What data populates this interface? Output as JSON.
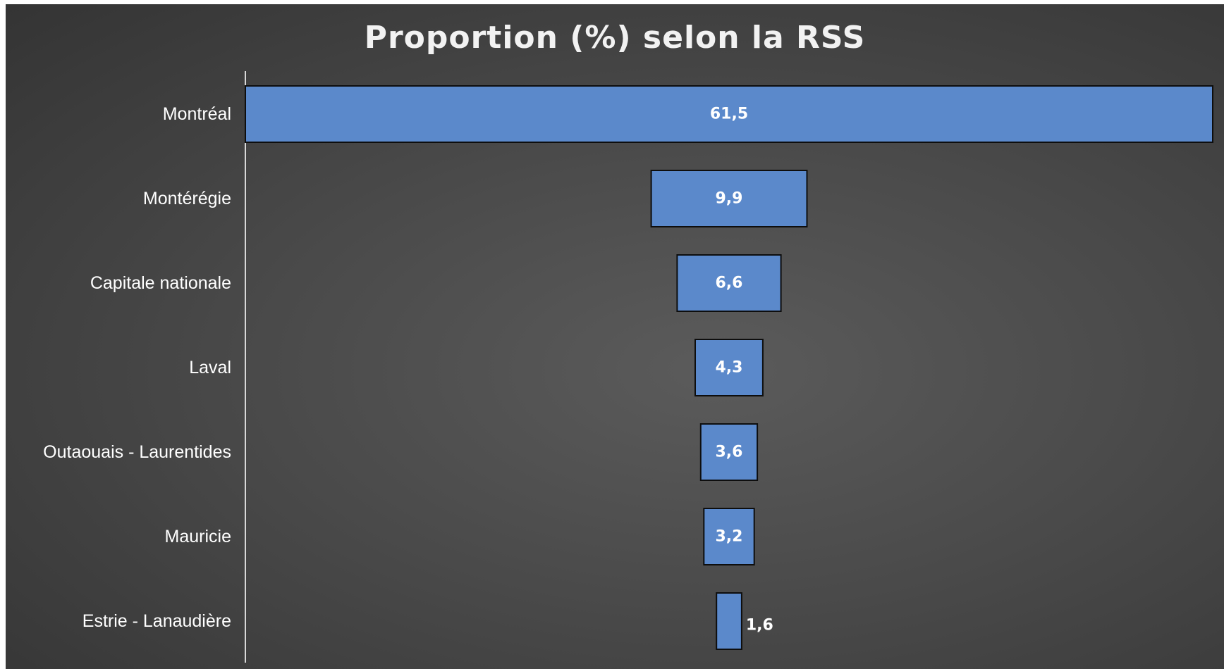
{
  "chart_data": {
    "type": "bar",
    "orientation": "horizontal",
    "layout": "funnel",
    "title": "Proportion (%) selon la RSS",
    "xlabel": "",
    "ylabel": "",
    "categories": [
      "Montréal",
      "Montérégie",
      "Capitale nationale",
      "Laval",
      "Outaouais - Laurentides",
      "Mauricie",
      "Estrie - Lanaudière"
    ],
    "values": [
      61.5,
      9.9,
      6.6,
      4.3,
      3.6,
      3.2,
      1.6
    ],
    "value_labels": [
      "61,5",
      "9,9",
      "6,6",
      "4,3",
      "3,6",
      "3,2",
      "1,6"
    ],
    "xlim": [
      0,
      61.5
    ],
    "grid": false,
    "legend": "none",
    "colors": {
      "background": "#4a4a4a",
      "bar_fill": "#5b89cb",
      "bar_outline": "#0e0e0e",
      "text": "#ffffff"
    }
  }
}
